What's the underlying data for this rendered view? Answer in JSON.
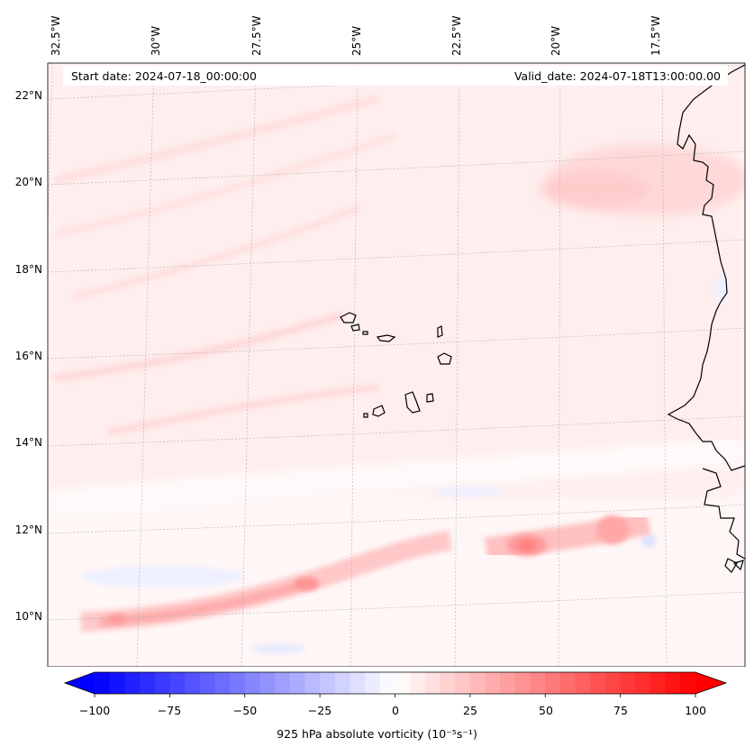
{
  "header": {
    "start_date": "Start date: 2024-07-18_00:00:00",
    "valid_date": "Valid_date: 2024-07-18T13:00:00.00"
  },
  "lon_labels": [
    "32.5°W",
    "30°W",
    "27.5°W",
    "25°W",
    "22.5°W",
    "20°W",
    "17.5°W"
  ],
  "lat_labels": [
    "22°N",
    "20°N",
    "18°N",
    "16°N",
    "14°N",
    "12°N",
    "10°N"
  ],
  "colorbar": {
    "label": "925 hPa absolute vorticity (10⁻⁵s⁻¹)",
    "ticks": [
      "−100",
      "−75",
      "−50",
      "−25",
      "0",
      "25",
      "50",
      "75",
      "100"
    ],
    "range": [
      -100,
      100
    ],
    "colormap": "bwr"
  },
  "colors": {
    "positive": "#ff0000",
    "negative": "#0000ff",
    "coastline": "#000000",
    "gridline": "#b0b0b0"
  }
}
